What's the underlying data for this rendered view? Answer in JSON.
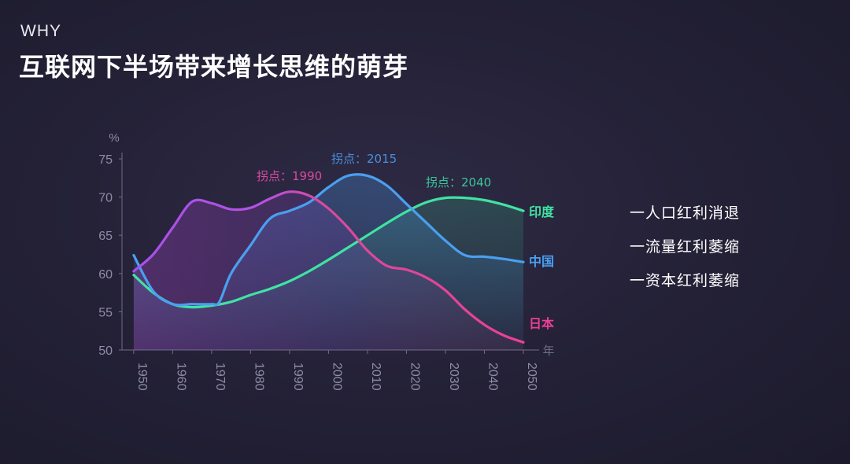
{
  "header": {
    "kicker": "WHY",
    "title": "互联网下半场带来增长思维的萌芽"
  },
  "bullets": [
    "一人口红利消退",
    "一流量红利萎缩",
    "一资本红利萎缩"
  ],
  "colors": {
    "india": "#3fe3a2",
    "china": "#4a9ff0",
    "japan": "#ee3f94",
    "japan_early": "#a650e8",
    "axis": "#6e6d86",
    "text_muted": "#8e8ca6"
  },
  "chart_data": {
    "type": "line",
    "ylabel": "%",
    "xlabel": "年",
    "xlim": [
      1947,
      2050
    ],
    "ylim": [
      50,
      75
    ],
    "x_ticks": [
      1950,
      1960,
      1970,
      1980,
      1990,
      2000,
      2010,
      2020,
      2030,
      2040,
      2050
    ],
    "y_ticks": [
      50,
      55,
      60,
      65,
      70,
      75
    ],
    "series": [
      {
        "name": "印度",
        "color": "#3fe3a2",
        "x": [
          1950,
          1955,
          1960,
          1965,
          1970,
          1975,
          1980,
          1985,
          1990,
          1995,
          2000,
          2005,
          2010,
          2015,
          2020,
          2025,
          2030,
          2035,
          2040,
          2045,
          2050
        ],
        "y": [
          59.8,
          57.5,
          56.0,
          55.6,
          55.8,
          56.3,
          57.2,
          58.0,
          59.0,
          60.3,
          61.8,
          63.4,
          65.0,
          66.6,
          68.1,
          69.3,
          69.9,
          69.9,
          69.6,
          69.0,
          68.2
        ]
      },
      {
        "name": "中国",
        "color": "#4a9ff0",
        "x": [
          1950,
          1955,
          1960,
          1965,
          1970,
          1972,
          1975,
          1980,
          1985,
          1990,
          1995,
          2000,
          2005,
          2010,
          2015,
          2020,
          2025,
          2030,
          2035,
          2040,
          2045,
          2050
        ],
        "y": [
          62.4,
          57.7,
          56.0,
          56.0,
          56.0,
          56.3,
          60.0,
          63.7,
          67.2,
          68.2,
          69.3,
          71.3,
          72.8,
          72.8,
          71.5,
          69.1,
          66.7,
          64.3,
          62.4,
          62.2,
          61.9,
          61.5
        ]
      },
      {
        "name": "日本",
        "color": "#ee3f94",
        "x": [
          1950,
          1955,
          1960,
          1965,
          1970,
          1975,
          1980,
          1985,
          1990,
          1995,
          2000,
          2005,
          2010,
          2015,
          2020,
          2025,
          2030,
          2035,
          2040,
          2045,
          2050
        ],
        "y": [
          60.3,
          62.5,
          66.0,
          69.4,
          69.2,
          68.4,
          68.6,
          69.8,
          70.7,
          70.2,
          68.5,
          66.0,
          63.0,
          61.0,
          60.5,
          59.5,
          57.8,
          55.3,
          53.3,
          51.9,
          51.0
        ]
      }
    ],
    "annotations": [
      {
        "text": "拐点：1990",
        "color": "#d84a9e"
      },
      {
        "text": "拐点：2015",
        "color": "#4a8fdc"
      },
      {
        "text": "拐点：2040",
        "color": "#3cc79a"
      }
    ]
  }
}
